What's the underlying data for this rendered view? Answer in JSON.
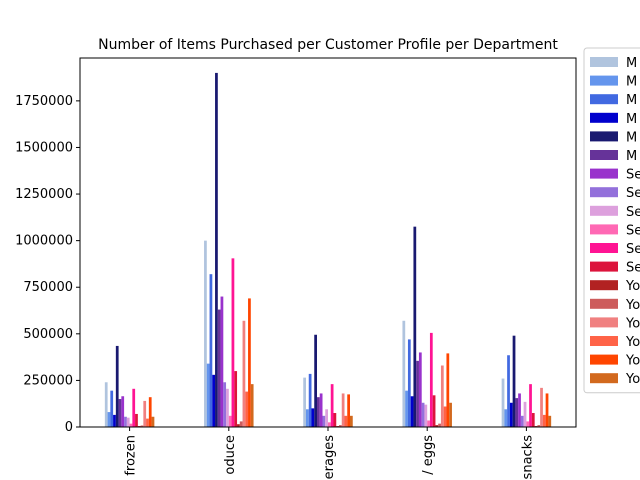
{
  "chart_data": {
    "type": "bar",
    "title": "Number of Items Purchased per Customer Profile per Department",
    "xlabel": "",
    "ylabel": "",
    "ylim": [
      0,
      1980000
    ],
    "yticks": [
      0,
      250000,
      500000,
      750000,
      1000000,
      1250000,
      1500000,
      1750000
    ],
    "grid": false,
    "legend_position": "right, outside plot (partially clipped)",
    "categories": [
      "frozen",
      "produce",
      "beverages",
      "dairy eggs",
      "snacks"
    ],
    "visible_category_labels": [
      "frozen",
      "oduce",
      "erages",
      "/ eggs",
      "snacks"
    ],
    "series": [
      {
        "name": "M",
        "color": "#b0c4de",
        "values": [
          240000,
          1000000,
          265000,
          570000,
          260000
        ]
      },
      {
        "name": "M",
        "color": "#6495ed",
        "values": [
          80000,
          340000,
          95000,
          195000,
          95000
        ]
      },
      {
        "name": "M",
        "color": "#4169e1",
        "values": [
          195000,
          820000,
          285000,
          470000,
          385000
        ]
      },
      {
        "name": "M",
        "color": "#0000cd",
        "values": [
          65000,
          280000,
          100000,
          165000,
          130000
        ]
      },
      {
        "name": "M",
        "color": "#191970",
        "values": [
          435000,
          1900000,
          495000,
          1075000,
          490000
        ]
      },
      {
        "name": "M",
        "color": "#663399",
        "values": [
          150000,
          630000,
          160000,
          355000,
          155000
        ]
      },
      {
        "name": "Se",
        "color": "#9932cc",
        "values": [
          165000,
          700000,
          180000,
          400000,
          180000
        ]
      },
      {
        "name": "Se",
        "color": "#9370db",
        "values": [
          55000,
          240000,
          60000,
          130000,
          60000
        ]
      },
      {
        "name": "Se",
        "color": "#dda0dd",
        "values": [
          50000,
          205000,
          95000,
          120000,
          135000
        ]
      },
      {
        "name": "Se",
        "color": "#ff69b4",
        "values": [
          18000,
          60000,
          25000,
          35000,
          30000
        ]
      },
      {
        "name": "Se",
        "color": "#ff1493",
        "values": [
          205000,
          905000,
          230000,
          505000,
          230000
        ]
      },
      {
        "name": "Se",
        "color": "#dc143c",
        "values": [
          70000,
          300000,
          75000,
          170000,
          75000
        ]
      },
      {
        "name": "Yo",
        "color": "#b22222",
        "values": [
          5000,
          15000,
          5000,
          10000,
          5000
        ]
      },
      {
        "name": "Yo",
        "color": "#cd5c5c",
        "values": [
          8000,
          30000,
          10000,
          18000,
          10000
        ]
      },
      {
        "name": "Yo",
        "color": "#f08080",
        "values": [
          140000,
          570000,
          180000,
          330000,
          210000
        ]
      },
      {
        "name": "Yo",
        "color": "#ff6347",
        "values": [
          45000,
          190000,
          60000,
          110000,
          65000
        ]
      },
      {
        "name": "Yo",
        "color": "#ff4500",
        "values": [
          160000,
          690000,
          175000,
          395000,
          180000
        ]
      },
      {
        "name": "Yo",
        "color": "#d2691e",
        "values": [
          55000,
          230000,
          60000,
          130000,
          60000
        ]
      }
    ]
  }
}
